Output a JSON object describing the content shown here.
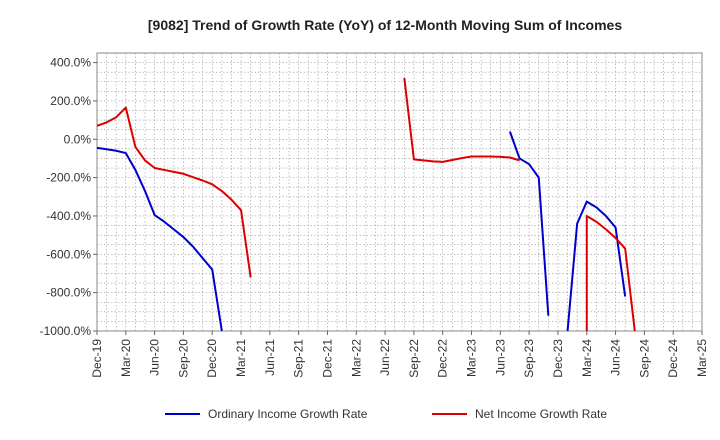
{
  "chart_data": {
    "type": "line",
    "title": "[9082]  Trend of Growth Rate (YoY) of 12-Month Moving Sum of Incomes",
    "xlabel": "",
    "ylabel": "",
    "ylim": [
      -1000,
      450
    ],
    "y_ticks": [
      "400.0%",
      "200.0%",
      "0.0%",
      "-200.0%",
      "-400.0%",
      "-600.0%",
      "-800.0%",
      "-1000.0%"
    ],
    "x_ticks": [
      "Dec-19",
      "Mar-20",
      "Jun-20",
      "Sep-20",
      "Dec-20",
      "Mar-21",
      "Jun-21",
      "Sep-21",
      "Dec-21",
      "Mar-22",
      "Jun-22",
      "Sep-22",
      "Dec-22",
      "Mar-23",
      "Jun-23",
      "Sep-23",
      "Dec-23",
      "Mar-24",
      "Jun-24",
      "Sep-24",
      "Dec-24",
      "Mar-25"
    ],
    "grid": true,
    "legend_position": "bottom",
    "series": [
      {
        "name": "Ordinary Income Growth Rate",
        "color": "#0000cc",
        "points": [
          [
            "Dec-19",
            -45
          ],
          [
            "Jan-20",
            -52
          ],
          [
            "Feb-20",
            -60
          ],
          [
            "Mar-20",
            -72
          ],
          [
            "Apr-20",
            -160
          ],
          [
            "May-20",
            -270
          ],
          [
            "Jun-20",
            -395
          ],
          [
            "Jul-20",
            -430
          ],
          [
            "Aug-20",
            -470
          ],
          [
            "Sep-20",
            -510
          ],
          [
            "Oct-20",
            -560
          ],
          [
            "Nov-20",
            -620
          ],
          [
            "Dec-20",
            -680
          ],
          [
            "Jan-21",
            -1000
          ]
        ],
        "segments_break_after": [
          "Jan-21"
        ],
        "points_2": [
          [
            "Jul-23",
            40
          ],
          [
            "Aug-23",
            -100
          ],
          [
            "Sep-23",
            -130
          ],
          [
            "Oct-23",
            -200
          ],
          [
            "Nov-23",
            -920
          ]
        ],
        "points_3": [
          [
            "Jan-24",
            -1000
          ],
          [
            "Feb-24",
            -440
          ],
          [
            "Mar-24",
            -325
          ],
          [
            "Apr-24",
            -355
          ],
          [
            "May-24",
            -400
          ],
          [
            "Jun-24",
            -460
          ],
          [
            "Jul-24",
            -820
          ]
        ]
      },
      {
        "name": "Net Income Growth Rate",
        "color": "#dd0000",
        "points": [
          [
            "Dec-19",
            70
          ],
          [
            "Jan-20",
            88
          ],
          [
            "Feb-20",
            115
          ],
          [
            "Mar-20",
            165
          ],
          [
            "Apr-20",
            -40
          ],
          [
            "May-20",
            -110
          ],
          [
            "Jun-20",
            -150
          ],
          [
            "Jul-20",
            -160
          ],
          [
            "Aug-20",
            -170
          ],
          [
            "Sep-20",
            -180
          ],
          [
            "Oct-20",
            -198
          ],
          [
            "Nov-20",
            -215
          ],
          [
            "Dec-20",
            -235
          ],
          [
            "Jan-21",
            -270
          ],
          [
            "Feb-21",
            -315
          ],
          [
            "Mar-21",
            -370
          ],
          [
            "Apr-21",
            -720
          ]
        ],
        "points_2": [
          [
            "Aug-22",
            320
          ],
          [
            "Sep-22",
            -105
          ],
          [
            "Oct-22",
            -110
          ],
          [
            "Nov-22",
            -115
          ],
          [
            "Dec-22",
            -118
          ],
          [
            "Jan-23",
            -108
          ],
          [
            "Feb-23",
            -98
          ],
          [
            "Mar-23",
            -90
          ],
          [
            "Apr-23",
            -90
          ],
          [
            "May-23",
            -90
          ],
          [
            "Jun-23",
            -92
          ],
          [
            "Jul-23",
            -95
          ],
          [
            "Aug-23",
            -110
          ]
        ],
        "points_3": [
          [
            "Mar-24",
            -1000
          ],
          [
            "Mar-24",
            -400
          ],
          [
            "Apr-24",
            -430
          ],
          [
            "May-24",
            -470
          ],
          [
            "Jun-24",
            -515
          ],
          [
            "Jul-24",
            -570
          ],
          [
            "Aug-24",
            -1000
          ]
        ]
      }
    ]
  }
}
